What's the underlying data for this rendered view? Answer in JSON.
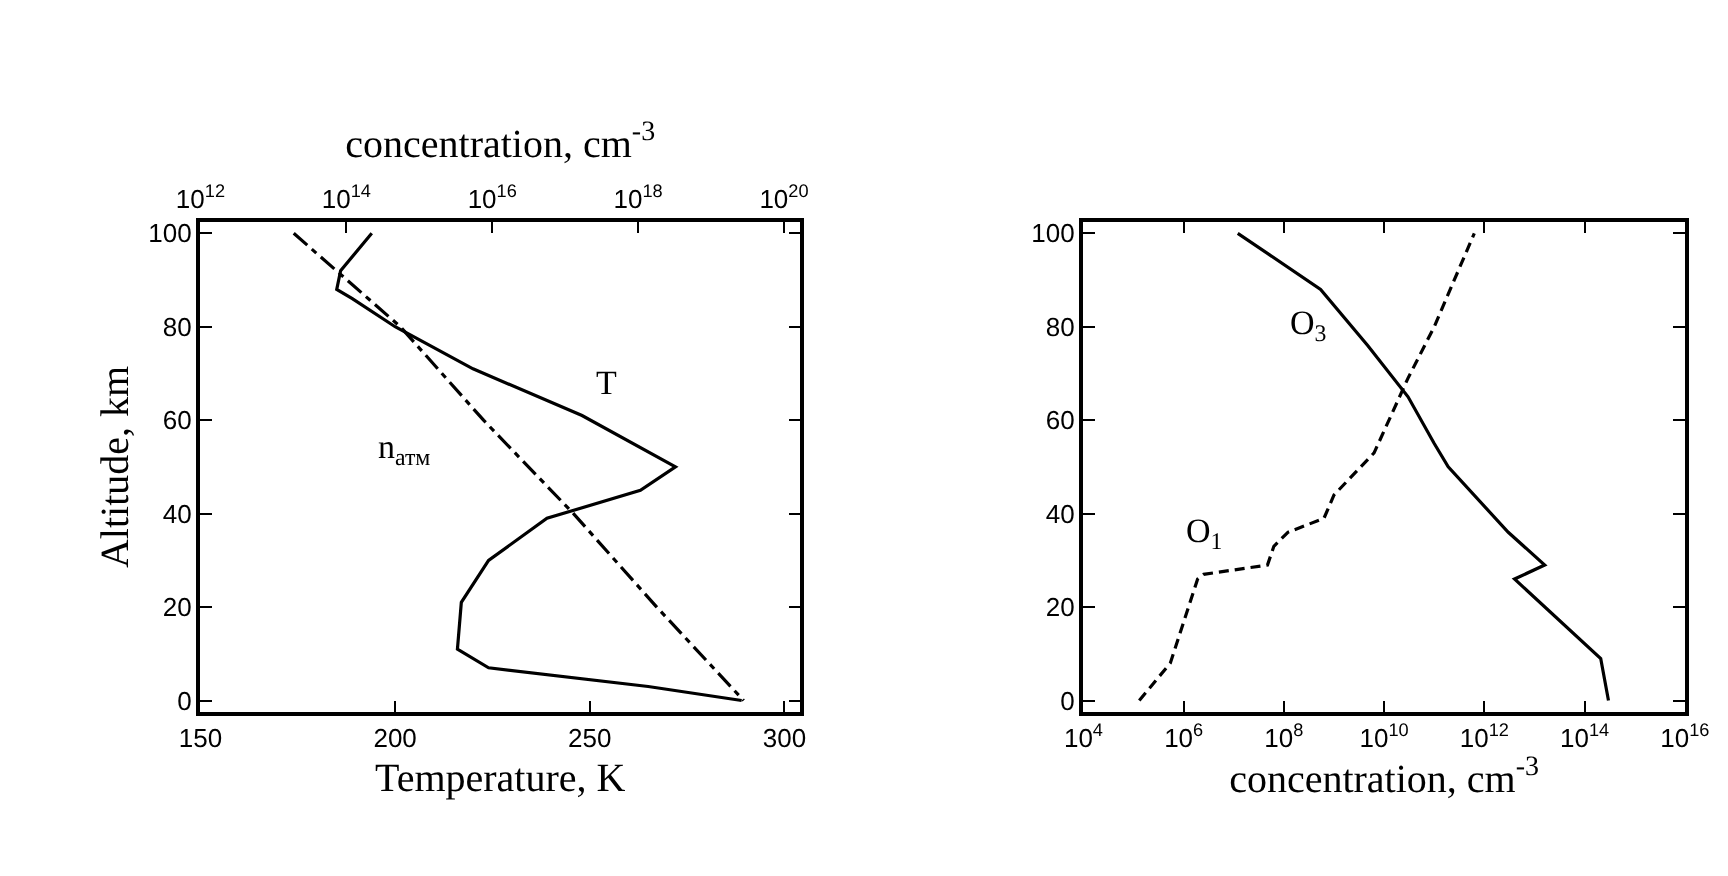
{
  "chart_data": [
    {
      "type": "line",
      "xlabel": "Temperature, K",
      "ylabel": "Altitude, km",
      "x2label": "concentration, cm$^{-3}$",
      "xlim": [
        150,
        304
      ],
      "xticks": [
        150,
        200,
        250,
        300
      ],
      "x2lim": [
        1000000000000.0,
        1.66e+20
      ],
      "x2ticks": [
        {
          "value": 1000000000000.0,
          "label": "10$^{12}$"
        },
        {
          "value": 100000000000000.0,
          "label": "10$^{14}$"
        },
        {
          "value": 1e+16,
          "label": "10$^{16}$"
        },
        {
          "value": 1e+18,
          "label": "10$^{18}$"
        },
        {
          "value": 1e+20,
          "label": "10$^{20}$"
        }
      ],
      "ylim": [
        -2.5,
        102.5
      ],
      "yticks": [
        0,
        20,
        40,
        60,
        80,
        100
      ],
      "log": "x2",
      "marker": "none",
      "series": [
        {
          "color": "#000000",
          "line_style": "solid",
          "x": [
            194,
            186,
            185,
            189,
            200,
            220,
            248,
            272,
            263,
            239,
            224,
            217,
            216,
            224,
            265,
            289
          ],
          "values": [
            100,
            92,
            88,
            86,
            80,
            71,
            61,
            50,
            45,
            39,
            30,
            21,
            11,
            7,
            3,
            0
          ]
        },
        {
          "color": "#000000",
          "line_style": "dashdot",
          "axis": "x2",
          "x": [
            19000000000000.0,
            550000000000000.0,
            7600000000000000.0,
            1.3e+17,
            1.8e+18,
            2.8e+19
          ],
          "values": [
            100,
            80,
            60,
            40,
            20,
            0
          ]
        }
      ],
      "annotations": [
        {
          "text": "T",
          "x": 248,
          "y": 61
        },
        "n$_{атм}$"
      ]
    },
    {
      "type": "line",
      "xlabel": "concentration, cm$^{-3}$",
      "xlim": [
        10000.0,
        1e+16
      ],
      "xticks": [
        {
          "value": 10000.0,
          "label": "10$^{4}$"
        },
        {
          "value": 1000000.0,
          "label": "10$^{6}$"
        },
        {
          "value": 100000000.0,
          "label": "10$^{8}$"
        },
        {
          "value": 10000000000.0,
          "label": "10$^{10}$"
        },
        {
          "value": 1000000000000.0,
          "label": "10$^{12}$"
        },
        {
          "value": 100000000000000.0,
          "label": "10$^{14}$"
        },
        {
          "value": 1e+16,
          "label": "10$^{16}$"
        }
      ],
      "ylim": [
        -2.5,
        102.5
      ],
      "yticks": [
        0,
        20,
        40,
        60,
        80,
        100
      ],
      "log": "x",
      "marker": "none",
      "series": [
        {
          "color": "#000000",
          "line_style": "solid",
          "x": [
            12000000.0,
            540000000.0,
            4700000000.0,
            30000000000.0,
            100000000000.0,
            190000000000.0,
            3000000000000.0,
            16000000000000.0,
            4000000000000.0,
            210000000000000.0,
            300000000000000.0
          ],
          "values": [
            100,
            88,
            76,
            65,
            55,
            50,
            36,
            29,
            26,
            9,
            0
          ]
        },
        {
          "color": "#000000",
          "line_style": "dashed",
          "x": [
            130000.0,
            540000.0,
            1900000.0,
            2500000.0,
            47000000.0,
            63000000.0,
            120000000.0,
            630000000.0,
            1000000000.0,
            6300000000.0,
            30000000000.0,
            100000000000.0,
            630000000000.0
          ],
          "values": [
            0,
            8,
            26,
            27,
            29,
            33,
            36,
            39,
            44,
            53,
            69,
            80,
            100
          ]
        }
      ],
      "annotations": [
        {
          "text": "O$_{3}$",
          "x": 4700000000.0,
          "y": 76
        },
        {
          "text": "O$_{1}$",
          "x": 47000000.0,
          "y": 29
        }
      ]
    }
  ]
}
